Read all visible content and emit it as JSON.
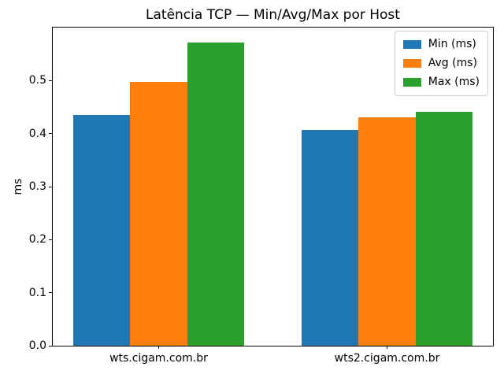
{
  "chart_data": {
    "type": "bar",
    "title": "Latência TCP — Min/Avg/Max por Host",
    "xlabel": "",
    "ylabel": "ms",
    "categories": [
      "wts.cigam.com.br",
      "wts2.cigam.com.br"
    ],
    "series": [
      {
        "name": "Min (ms)",
        "color": "#1f77b4",
        "values": [
          0.435,
          0.407
        ]
      },
      {
        "name": "Avg (ms)",
        "color": "#ff7f0e",
        "values": [
          0.498,
          0.431
        ]
      },
      {
        "name": "Max (ms)",
        "color": "#2ca02c",
        "values": [
          0.572,
          0.441
        ]
      }
    ],
    "ylim": [
      0,
      0.6
    ],
    "yticks": [
      "0.0",
      "0.1",
      "0.2",
      "0.3",
      "0.4",
      "0.5"
    ],
    "grid": false,
    "legend_position": "upper right",
    "background_color": "#ffffff",
    "spine_color": "#000000"
  }
}
